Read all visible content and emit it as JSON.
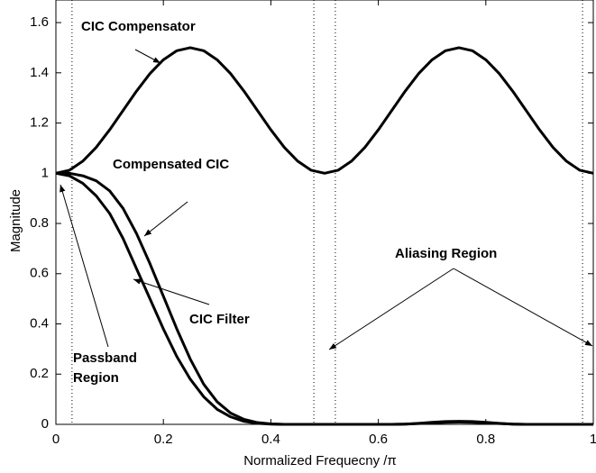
{
  "chart_data": {
    "type": "line",
    "xlabel": "Normalized Frequecny /π",
    "ylabel": "Magnitude",
    "x": [
      0,
      0.025,
      0.05,
      0.075,
      0.1,
      0.125,
      0.15,
      0.175,
      0.2,
      0.225,
      0.25,
      0.275,
      0.3,
      0.325,
      0.35,
      0.375,
      0.4,
      0.425,
      0.45,
      0.475,
      0.5,
      0.525,
      0.55,
      0.575,
      0.6,
      0.625,
      0.65,
      0.675,
      0.7,
      0.725,
      0.75,
      0.775,
      0.8,
      0.825,
      0.85,
      0.875,
      0.9,
      0.925,
      0.95,
      0.975,
      1
    ],
    "series": [
      {
        "color": "#000000",
        "values": [
          1,
          1.012,
          1.048,
          1.103,
          1.173,
          1.25,
          1.327,
          1.397,
          1.452,
          1.488,
          1.5,
          1.488,
          1.452,
          1.397,
          1.327,
          1.25,
          1.173,
          1.103,
          1.048,
          1.012,
          1,
          1.012,
          1.048,
          1.103,
          1.173,
          1.25,
          1.327,
          1.397,
          1.452,
          1.488,
          1.5,
          1.488,
          1.452,
          1.397,
          1.327,
          1.25,
          1.173,
          1.103,
          1.048,
          1.012,
          1
        ]
      },
      {
        "color": "#000000",
        "values": [
          1,
          1.0,
          0.99,
          0.97,
          0.93,
          0.86,
          0.76,
          0.64,
          0.51,
          0.38,
          0.26,
          0.16,
          0.09,
          0.045,
          0.02,
          0.007,
          0.002,
          0,
          0,
          0,
          0,
          0,
          0,
          0,
          0,
          0,
          0.001,
          0.004,
          0.008,
          0.011,
          0.012,
          0.011,
          0.008,
          0.004,
          0.001,
          0,
          0,
          0,
          0,
          0,
          0
        ]
      },
      {
        "color": "#000000",
        "values": [
          1,
          0.99,
          0.96,
          0.91,
          0.84,
          0.74,
          0.62,
          0.5,
          0.38,
          0.27,
          0.18,
          0.11,
          0.06,
          0.03,
          0.012,
          0.004,
          0.001,
          0,
          0,
          0,
          0,
          0,
          0,
          0,
          0,
          0,
          0.001,
          0.003,
          0.006,
          0.008,
          0.009,
          0.008,
          0.006,
          0.003,
          0.001,
          0,
          0,
          0,
          0,
          0,
          0
        ]
      }
    ],
    "vlines": [
      0.03,
      0.48,
      0.52,
      0.98
    ],
    "xlim": [
      0,
      1
    ],
    "ylim": [
      0,
      1.69
    ],
    "xticks": [
      0,
      0.2,
      0.4,
      0.6,
      0.8,
      1
    ],
    "yticks": [
      0,
      0.2,
      0.4,
      0.6,
      0.8,
      1,
      1.2,
      1.4,
      1.6
    ],
    "annotations": [
      "CIC Compensator",
      "Compensated CIC",
      "CIC Filter",
      "Passband",
      "Region",
      "Aliasing Region"
    ]
  }
}
